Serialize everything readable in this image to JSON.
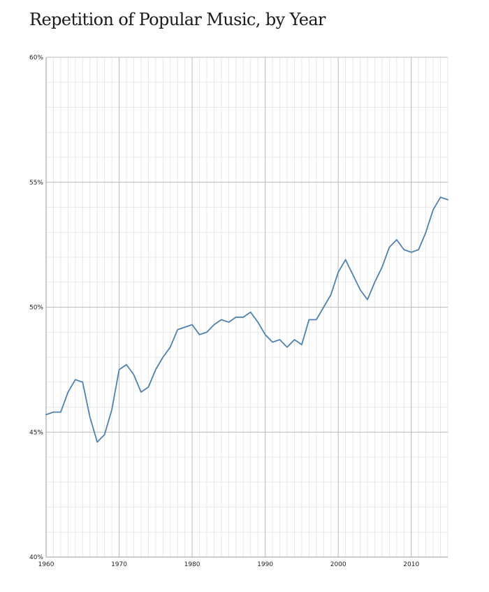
{
  "chart_data": {
    "type": "line",
    "title": "Repetition of Popular Music, by Year",
    "xlabel": "",
    "ylabel": "",
    "xlim": [
      1960,
      2015
    ],
    "ylim": [
      40,
      60
    ],
    "grid": true,
    "x_ticks": [
      1960,
      1970,
      1980,
      1990,
      2000,
      2010
    ],
    "x_tick_labels": [
      "1960",
      "1970",
      "1980",
      "1990",
      "2000",
      "2010"
    ],
    "y_ticks": [
      40,
      45,
      50,
      55,
      60
    ],
    "y_tick_labels": [
      "40%",
      "45%",
      "50%",
      "55%",
      "60%"
    ],
    "line_color": "#4f82b3",
    "series": [
      {
        "x": [
          1960,
          1961,
          1962,
          1963,
          1964,
          1965,
          1966,
          1967,
          1968,
          1969,
          1970,
          1971,
          1972,
          1973,
          1974,
          1975,
          1976,
          1977,
          1978,
          1979,
          1980,
          1981,
          1982,
          1983,
          1984,
          1985,
          1986,
          1987,
          1988,
          1989,
          1990,
          1991,
          1992,
          1993,
          1994,
          1995,
          1996,
          1997,
          1998,
          1999,
          2000,
          2001,
          2002,
          2003,
          2004,
          2005,
          2006,
          2007,
          2008,
          2009,
          2010,
          2011,
          2012,
          2013,
          2014,
          2015
        ],
        "values": [
          45.7,
          45.8,
          45.8,
          46.6,
          47.1,
          47.0,
          45.6,
          44.6,
          44.9,
          45.9,
          47.5,
          47.7,
          47.3,
          46.6,
          46.8,
          47.5,
          48.0,
          48.4,
          49.1,
          49.2,
          49.3,
          48.9,
          49.0,
          49.3,
          49.5,
          49.4,
          49.6,
          49.6,
          49.8,
          49.4,
          48.9,
          48.6,
          48.7,
          48.4,
          48.7,
          48.5,
          49.5,
          49.5,
          50.0,
          50.5,
          51.4,
          51.9,
          51.3,
          50.7,
          50.3,
          51.0,
          51.6,
          52.4,
          52.7,
          52.3,
          52.2,
          52.3,
          53.0,
          53.9,
          54.4,
          54.3
        ]
      }
    ]
  }
}
